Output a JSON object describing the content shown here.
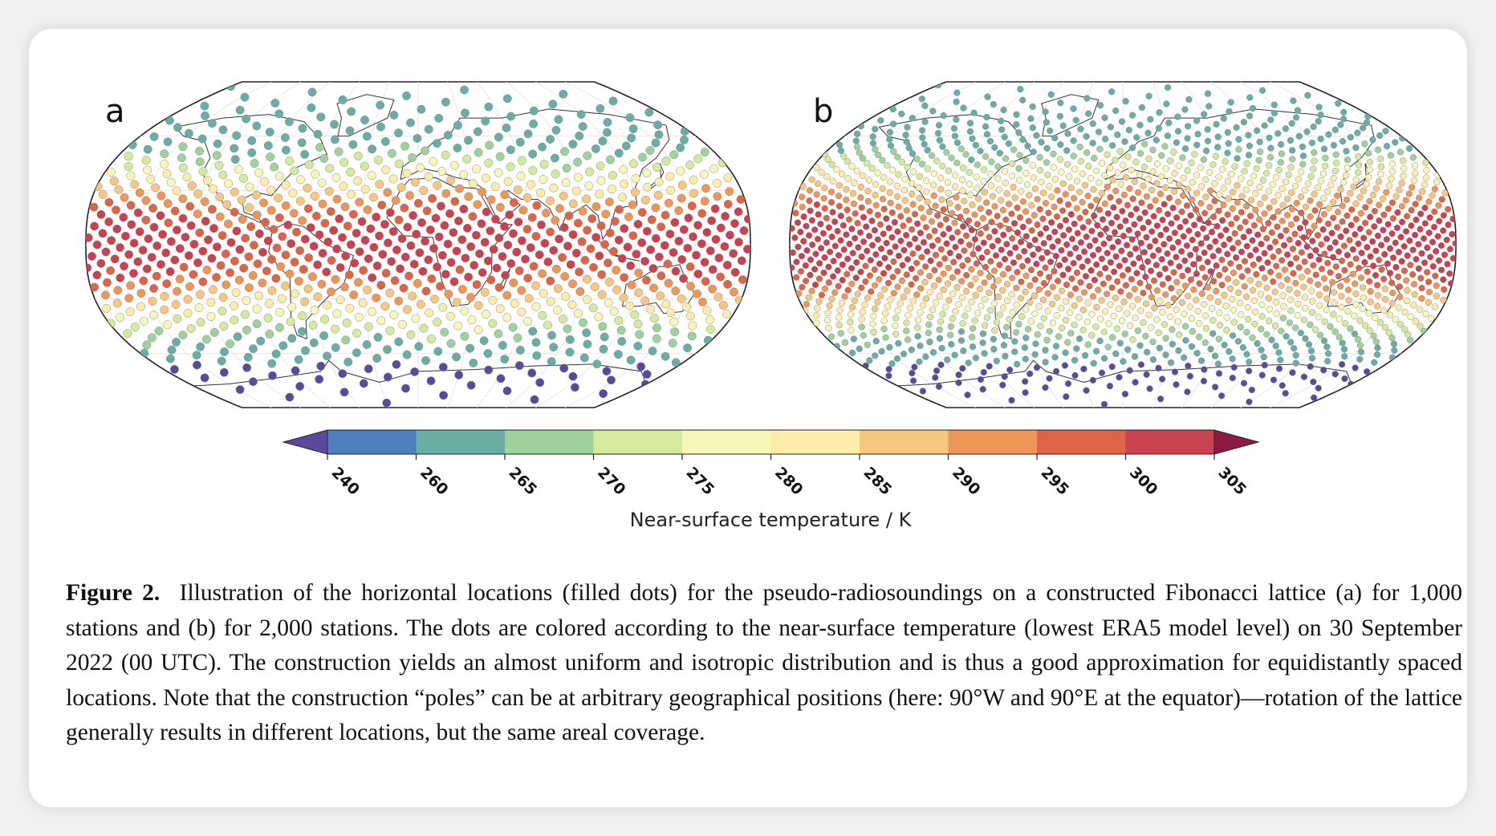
{
  "figure": {
    "panels": [
      {
        "label": "a",
        "stations": 1000
      },
      {
        "label": "b",
        "stations": 2000
      }
    ],
    "colorbar": {
      "label": "Near-surface temperature / K",
      "ticks": [
        "240",
        "260",
        "265",
        "270",
        "275",
        "280",
        "285",
        "290",
        "295",
        "300",
        "305"
      ],
      "colors": [
        "#4f7fbf",
        "#6aada4",
        "#9fd19c",
        "#d4ea9e",
        "#f6f7b8",
        "#fdecaa",
        "#f7c67f",
        "#ee9558",
        "#de6448",
        "#c94250"
      ],
      "extend_low_color": "#5b4a9c",
      "extend_high_color": "#8e1946"
    }
  },
  "caption": {
    "figure_label": "Figure 2.",
    "text": "Illustration of the horizontal locations (filled dots) for the pseudo-radiosoundings on a constructed Fibonacci lattice (a) for 1,000 stations and (b) for 2,000 stations. The dots are colored according to the near-surface temperature (lowest ERA5 model level) on 30 September 2022 (00 UTC). The construction yields an almost uniform and isotropic distribution and is thus a good approximation for equidistantly spaced locations. Note that the construction “poles” can be at arbitrary geographical positions (here: 90°W and 90°E at the equator)—rotation of the lattice generally results in different locations, but the same areal coverage."
  }
}
